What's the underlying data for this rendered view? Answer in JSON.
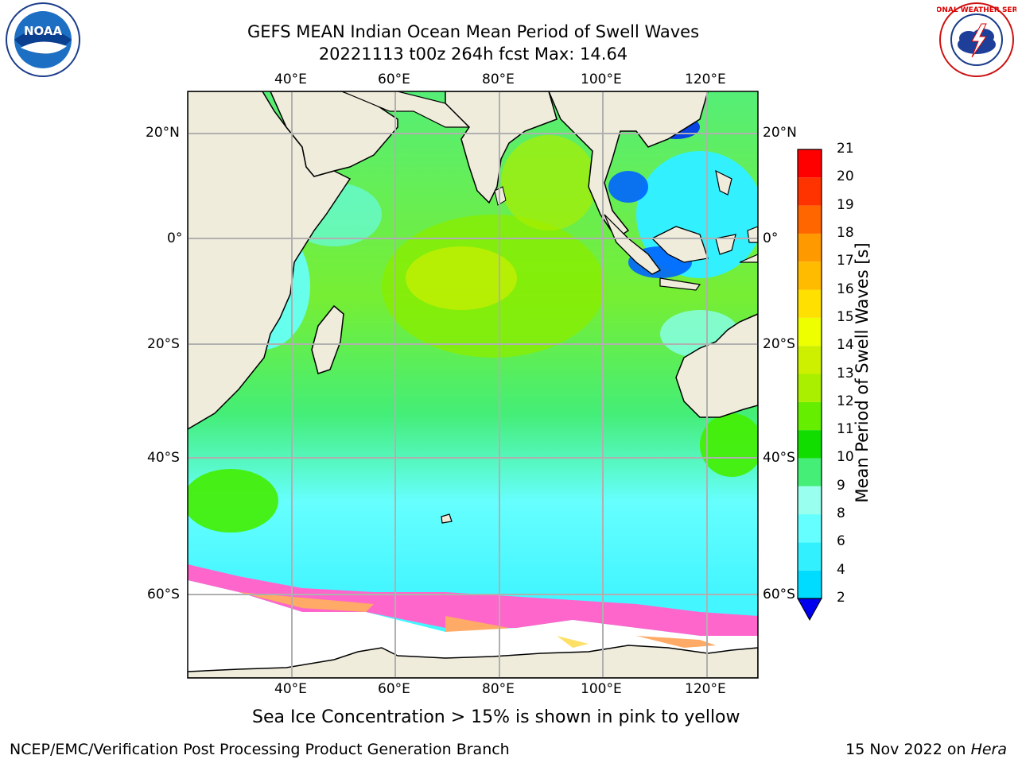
{
  "title": {
    "line1": "GEFS MEAN Indian Ocean Mean Period of Swell Waves",
    "line2": "20221113 t00z 264h fcst   Max: 14.64"
  },
  "logos": {
    "left": {
      "icon": "noaa-logo",
      "text": "NOAA",
      "ring_text": "NATIONAL OCEANIC AND ATMOSPHERIC ADMINISTRATION · U.S. DEPARTMENT OF COMMERCE"
    },
    "right": {
      "icon": "nws-logo",
      "ring_text": "NATIONAL WEATHER SERVICE"
    }
  },
  "map": {
    "lon_labels": [
      "40°E",
      "60°E",
      "80°E",
      "100°E",
      "120°E"
    ],
    "lat_labels": [
      "20°N",
      "0°",
      "20°S",
      "40°S",
      "60°S"
    ],
    "land_color": "#efecdc",
    "ice_colors": [
      "#ff66cc",
      "#ffaa66",
      "#ffe066"
    ]
  },
  "colorbar": {
    "label": "Mean Period of Swell Waves [s]",
    "ticks": [
      "2",
      "4",
      "6",
      "8",
      "9",
      "10",
      "11",
      "12",
      "13",
      "14",
      "15",
      "16",
      "17",
      "18",
      "19",
      "20",
      "21"
    ],
    "colors": [
      "#0064ff",
      "#00dcff",
      "#33f0ff",
      "#66ffff",
      "#99ffee",
      "#44ee77",
      "#11dd00",
      "#66ee00",
      "#aaee00",
      "#ccf000",
      "#eeff00",
      "#ffe000",
      "#ffbb00",
      "#ff9900",
      "#ff6600",
      "#ff3300",
      "#ff0000"
    ],
    "extend_color": "#0000ee"
  },
  "note": "Sea Ice Concentration > 15% is shown in pink to yellow",
  "footer": {
    "left": "NCEP/EMC/Verification Post Processing Product Generation Branch",
    "right_date": "15 Nov 2022 on ",
    "right_host": "Hera"
  }
}
